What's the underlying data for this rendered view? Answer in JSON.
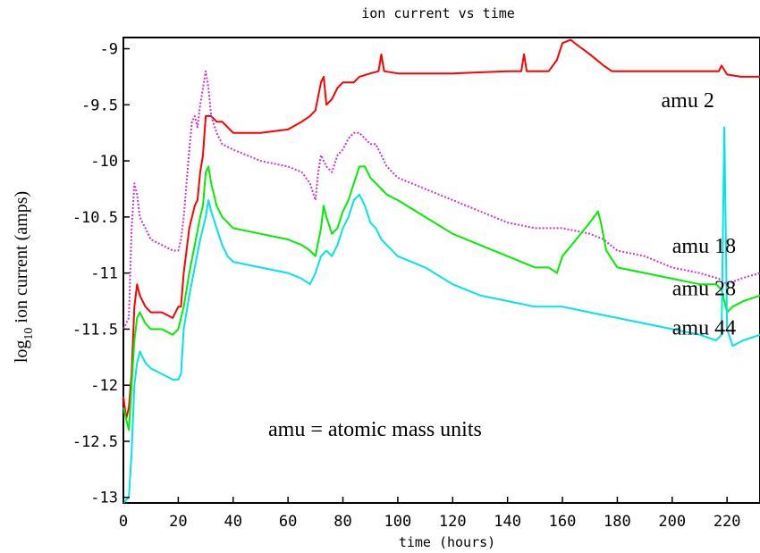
{
  "chart_data": {
    "type": "line",
    "title": "ion current vs time",
    "xlabel": "time (hours)",
    "ylabel_main": "log",
    "ylabel_sub": "10",
    "ylabel_rest": " ion current (amps)",
    "xlim": [
      0,
      232
    ],
    "ylim": [
      -13.05,
      -8.9
    ],
    "xticks": [
      "0",
      "20",
      "40",
      "60",
      "80",
      "100",
      "120",
      "140",
      "160",
      "180",
      "200",
      "220"
    ],
    "yticks": [
      "-9",
      "-9.5",
      "-10",
      "-10.5",
      "-11",
      "-11.5",
      "-12",
      "-12.5",
      "-13"
    ],
    "grid": false,
    "annotation": "amu = atomic mass units",
    "series": [
      {
        "name": "amu 2",
        "color": "#ff0000",
        "style": "solid",
        "points": [
          [
            0,
            -12.1
          ],
          [
            1,
            -12.3
          ],
          [
            2,
            -12.2
          ],
          [
            3,
            -11.9
          ],
          [
            4,
            -11.3
          ],
          [
            5,
            -11.1
          ],
          [
            6,
            -11.2
          ],
          [
            8,
            -11.3
          ],
          [
            10,
            -11.35
          ],
          [
            14,
            -11.35
          ],
          [
            18,
            -11.4
          ],
          [
            20,
            -11.3
          ],
          [
            21,
            -11.3
          ],
          [
            22,
            -11.0
          ],
          [
            24,
            -10.6
          ],
          [
            26,
            -10.4
          ],
          [
            27,
            -10.35
          ],
          [
            28,
            -10.1
          ],
          [
            29,
            -9.95
          ],
          [
            30,
            -9.6
          ],
          [
            32,
            -9.6
          ],
          [
            34,
            -9.65
          ],
          [
            36,
            -9.65
          ],
          [
            38,
            -9.7
          ],
          [
            40,
            -9.75
          ],
          [
            50,
            -9.75
          ],
          [
            60,
            -9.72
          ],
          [
            65,
            -9.65
          ],
          [
            68,
            -9.6
          ],
          [
            70,
            -9.55
          ],
          [
            72,
            -9.3
          ],
          [
            73,
            -9.25
          ],
          [
            74,
            -9.5
          ],
          [
            76,
            -9.45
          ],
          [
            78,
            -9.35
          ],
          [
            80,
            -9.3
          ],
          [
            84,
            -9.3
          ],
          [
            86,
            -9.25
          ],
          [
            90,
            -9.22
          ],
          [
            93,
            -9.2
          ],
          [
            94,
            -9.05
          ],
          [
            95,
            -9.2
          ],
          [
            100,
            -9.22
          ],
          [
            120,
            -9.22
          ],
          [
            140,
            -9.2
          ],
          [
            145,
            -9.2
          ],
          [
            146,
            -9.05
          ],
          [
            147,
            -9.2
          ],
          [
            155,
            -9.2
          ],
          [
            158,
            -9.1
          ],
          [
            160,
            -8.95
          ],
          [
            163,
            -8.92
          ],
          [
            165,
            -8.96
          ],
          [
            170,
            -9.05
          ],
          [
            175,
            -9.15
          ],
          [
            178,
            -9.2
          ],
          [
            190,
            -9.2
          ],
          [
            200,
            -9.2
          ],
          [
            210,
            -9.2
          ],
          [
            216,
            -9.2
          ],
          [
            217,
            -9.2
          ],
          [
            218,
            -9.15
          ],
          [
            220,
            -9.23
          ],
          [
            225,
            -9.25
          ],
          [
            232,
            -9.25
          ]
        ]
      },
      {
        "name": "amu 18",
        "color": "#cc33cc",
        "style": "dotted",
        "points": [
          [
            0,
            -11.5
          ],
          [
            2,
            -11.4
          ],
          [
            3,
            -10.6
          ],
          [
            4,
            -10.2
          ],
          [
            5,
            -10.3
          ],
          [
            6,
            -10.5
          ],
          [
            8,
            -10.6
          ],
          [
            10,
            -10.7
          ],
          [
            14,
            -10.75
          ],
          [
            18,
            -10.8
          ],
          [
            20,
            -10.8
          ],
          [
            21,
            -10.7
          ],
          [
            22,
            -10.5
          ],
          [
            23,
            -10.2
          ],
          [
            24,
            -9.9
          ],
          [
            25,
            -9.65
          ],
          [
            26,
            -9.6
          ],
          [
            27,
            -9.7
          ],
          [
            28,
            -9.5
          ],
          [
            29,
            -9.35
          ],
          [
            30,
            -9.2
          ],
          [
            31,
            -9.35
          ],
          [
            32,
            -9.6
          ],
          [
            34,
            -9.75
          ],
          [
            36,
            -9.85
          ],
          [
            40,
            -9.9
          ],
          [
            50,
            -10.0
          ],
          [
            60,
            -10.05
          ],
          [
            65,
            -10.1
          ],
          [
            68,
            -10.2
          ],
          [
            70,
            -10.35
          ],
          [
            71,
            -10.1
          ],
          [
            72,
            -9.95
          ],
          [
            73,
            -10.0
          ],
          [
            74,
            -10.05
          ],
          [
            76,
            -10.1
          ],
          [
            78,
            -9.95
          ],
          [
            80,
            -9.9
          ],
          [
            82,
            -9.8
          ],
          [
            84,
            -9.75
          ],
          [
            86,
            -9.75
          ],
          [
            88,
            -9.8
          ],
          [
            90,
            -9.85
          ],
          [
            92,
            -9.85
          ],
          [
            94,
            -9.95
          ],
          [
            96,
            -10.05
          ],
          [
            100,
            -10.15
          ],
          [
            110,
            -10.25
          ],
          [
            120,
            -10.35
          ],
          [
            130,
            -10.45
          ],
          [
            140,
            -10.55
          ],
          [
            150,
            -10.6
          ],
          [
            160,
            -10.6
          ],
          [
            170,
            -10.65
          ],
          [
            175,
            -10.7
          ],
          [
            180,
            -10.8
          ],
          [
            190,
            -10.85
          ],
          [
            200,
            -10.95
          ],
          [
            210,
            -11.0
          ],
          [
            217,
            -11.05
          ],
          [
            220,
            -11.1
          ],
          [
            225,
            -11.05
          ],
          [
            232,
            -11.0
          ]
        ]
      },
      {
        "name": "amu 28",
        "color": "#00ee00",
        "style": "solid",
        "points": [
          [
            0,
            -12.2
          ],
          [
            2,
            -12.4
          ],
          [
            3,
            -12.0
          ],
          [
            4,
            -11.6
          ],
          [
            5,
            -11.4
          ],
          [
            6,
            -11.35
          ],
          [
            8,
            -11.45
          ],
          [
            10,
            -11.5
          ],
          [
            14,
            -11.5
          ],
          [
            18,
            -11.55
          ],
          [
            20,
            -11.5
          ],
          [
            22,
            -11.3
          ],
          [
            24,
            -11.0
          ],
          [
            26,
            -10.75
          ],
          [
            28,
            -10.5
          ],
          [
            29,
            -10.4
          ],
          [
            30,
            -10.1
          ],
          [
            31,
            -10.05
          ],
          [
            32,
            -10.2
          ],
          [
            34,
            -10.4
          ],
          [
            36,
            -10.5
          ],
          [
            38,
            -10.55
          ],
          [
            40,
            -10.6
          ],
          [
            50,
            -10.65
          ],
          [
            60,
            -10.7
          ],
          [
            65,
            -10.75
          ],
          [
            68,
            -10.8
          ],
          [
            70,
            -10.85
          ],
          [
            72,
            -10.6
          ],
          [
            73,
            -10.4
          ],
          [
            74,
            -10.5
          ],
          [
            76,
            -10.65
          ],
          [
            78,
            -10.6
          ],
          [
            80,
            -10.45
          ],
          [
            82,
            -10.35
          ],
          [
            84,
            -10.2
          ],
          [
            86,
            -10.05
          ],
          [
            88,
            -10.05
          ],
          [
            90,
            -10.15
          ],
          [
            92,
            -10.2
          ],
          [
            94,
            -10.25
          ],
          [
            96,
            -10.3
          ],
          [
            100,
            -10.35
          ],
          [
            110,
            -10.5
          ],
          [
            120,
            -10.65
          ],
          [
            130,
            -10.75
          ],
          [
            140,
            -10.85
          ],
          [
            150,
            -10.95
          ],
          [
            155,
            -10.95
          ],
          [
            158,
            -11.0
          ],
          [
            160,
            -10.85
          ],
          [
            165,
            -10.7
          ],
          [
            170,
            -10.55
          ],
          [
            173,
            -10.45
          ],
          [
            174,
            -10.55
          ],
          [
            176,
            -10.8
          ],
          [
            180,
            -10.95
          ],
          [
            190,
            -11.0
          ],
          [
            200,
            -11.05
          ],
          [
            210,
            -11.1
          ],
          [
            216,
            -11.1
          ],
          [
            218,
            -11.15
          ],
          [
            220,
            -11.35
          ],
          [
            222,
            -11.3
          ],
          [
            226,
            -11.25
          ],
          [
            232,
            -11.2
          ]
        ]
      },
      {
        "name": "amu 44",
        "color": "#00e5e5",
        "style": "solid",
        "points": [
          [
            0,
            -13.05
          ],
          [
            2,
            -13.0
          ],
          [
            3,
            -12.6
          ],
          [
            4,
            -12.0
          ],
          [
            5,
            -11.8
          ],
          [
            6,
            -11.7
          ],
          [
            8,
            -11.8
          ],
          [
            10,
            -11.85
          ],
          [
            14,
            -11.9
          ],
          [
            18,
            -11.95
          ],
          [
            20,
            -11.95
          ],
          [
            21,
            -11.9
          ],
          [
            22,
            -11.5
          ],
          [
            24,
            -11.2
          ],
          [
            26,
            -10.95
          ],
          [
            28,
            -10.7
          ],
          [
            30,
            -10.5
          ],
          [
            31,
            -10.35
          ],
          [
            32,
            -10.45
          ],
          [
            34,
            -10.6
          ],
          [
            36,
            -10.75
          ],
          [
            38,
            -10.85
          ],
          [
            40,
            -10.9
          ],
          [
            50,
            -10.95
          ],
          [
            60,
            -11.0
          ],
          [
            65,
            -11.05
          ],
          [
            68,
            -11.1
          ],
          [
            70,
            -11.0
          ],
          [
            72,
            -10.85
          ],
          [
            74,
            -10.8
          ],
          [
            76,
            -10.85
          ],
          [
            78,
            -10.75
          ],
          [
            80,
            -10.6
          ],
          [
            82,
            -10.5
          ],
          [
            84,
            -10.35
          ],
          [
            86,
            -10.3
          ],
          [
            88,
            -10.4
          ],
          [
            90,
            -10.55
          ],
          [
            92,
            -10.6
          ],
          [
            94,
            -10.7
          ],
          [
            96,
            -10.75
          ],
          [
            100,
            -10.85
          ],
          [
            110,
            -10.95
          ],
          [
            120,
            -11.1
          ],
          [
            130,
            -11.2
          ],
          [
            140,
            -11.25
          ],
          [
            150,
            -11.3
          ],
          [
            160,
            -11.3
          ],
          [
            170,
            -11.35
          ],
          [
            180,
            -11.4
          ],
          [
            190,
            -11.45
          ],
          [
            200,
            -11.5
          ],
          [
            210,
            -11.55
          ],
          [
            216,
            -11.6
          ],
          [
            218,
            -11.55
          ],
          [
            219,
            -9.7
          ],
          [
            220,
            -11.5
          ],
          [
            222,
            -11.65
          ],
          [
            226,
            -11.6
          ],
          [
            232,
            -11.55
          ]
        ]
      }
    ]
  }
}
